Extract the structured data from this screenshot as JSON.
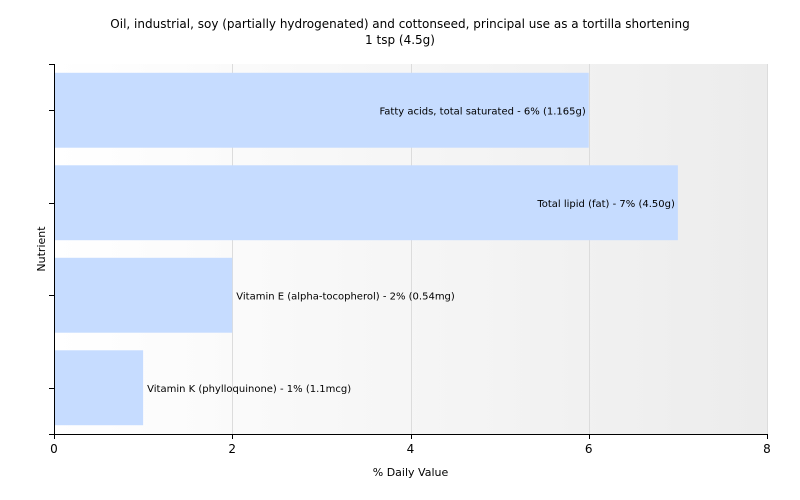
{
  "chart_data": {
    "type": "bar",
    "orientation": "horizontal",
    "title": "Oil, industrial, soy (partially hydrogenated)  and cottonseed, principal use as a tortilla shortening",
    "subtitle": "1 tsp (4.5g)",
    "xlabel": "% Daily Value",
    "ylabel": "Nutrient",
    "xlim": [
      0,
      8
    ],
    "xticks": [
      "0",
      "2",
      "4",
      "6",
      "8"
    ],
    "grid": true,
    "bar_color": "#c6dcff",
    "categories": [
      "Fatty acids, total saturated",
      "Total lipid (fat)",
      "Vitamin E (alpha-tocopherol)",
      "Vitamin K (phylloquinone)"
    ],
    "values": [
      6,
      7,
      2,
      1
    ],
    "data_labels": [
      "Fatty acids, total saturated - 6% (1.165g)",
      "Total lipid (fat) - 7% (4.50g)",
      "Vitamin E (alpha-tocopherol) - 2% (0.54mg)",
      "Vitamin K (phylloquinone) - 1% (1.1mcg)"
    ]
  }
}
